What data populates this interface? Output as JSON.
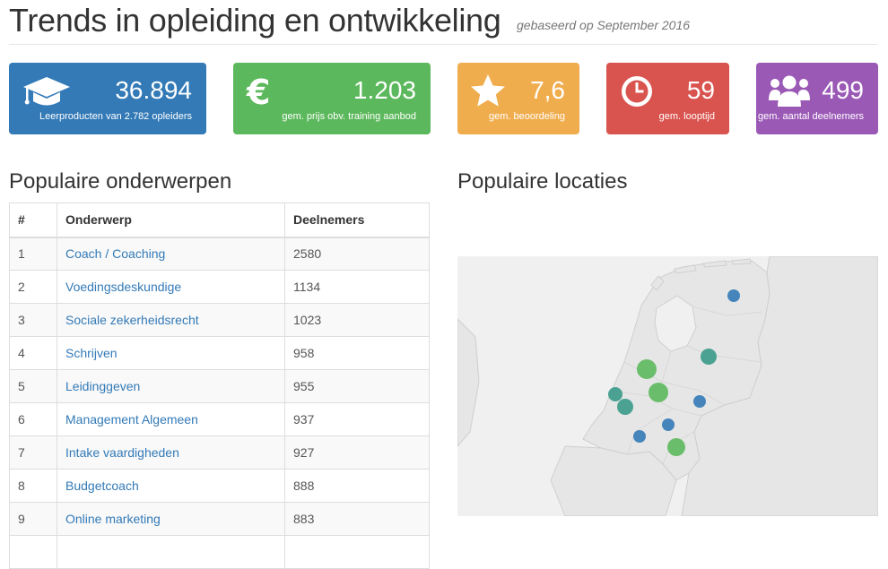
{
  "header": {
    "title": "Trends in opleiding en ontwikkeling",
    "subtitle": "gebaseerd op September 2016"
  },
  "stats": [
    {
      "value": "36.894",
      "label": "Leerproducten van 2.782 opleiders",
      "icon": "graduation-cap-icon",
      "color": "#337ab7"
    },
    {
      "value": "1.203",
      "label": "gem. prijs obv. training aanbod",
      "icon": "euro-icon",
      "color": "#5cb85c"
    },
    {
      "value": "7,6",
      "label": "gem. beoordeling",
      "icon": "star-icon",
      "color": "#f0ad4e"
    },
    {
      "value": "59",
      "label": "gem. looptijd",
      "icon": "clock-icon",
      "color": "#d9534f"
    },
    {
      "value": "499",
      "label": "gem. aantal deelnemers",
      "icon": "users-icon",
      "color": "#9b59b6"
    }
  ],
  "topics": {
    "heading": "Populaire onderwerpen",
    "columns": [
      "#",
      "Onderwerp",
      "Deelnemers"
    ],
    "rows": [
      {
        "rank": "1",
        "topic": "Coach / Coaching",
        "participants": "2580"
      },
      {
        "rank": "2",
        "topic": "Voedingsdeskundige",
        "participants": "1134"
      },
      {
        "rank": "3",
        "topic": "Sociale zekerheidsrecht",
        "participants": "1023"
      },
      {
        "rank": "4",
        "topic": "Schrijven",
        "participants": "958"
      },
      {
        "rank": "5",
        "topic": "Leidinggeven",
        "participants": "955"
      },
      {
        "rank": "6",
        "topic": "Management Algemeen",
        "participants": "937"
      },
      {
        "rank": "7",
        "topic": "Intake vaardigheden",
        "participants": "927"
      },
      {
        "rank": "8",
        "topic": "Budgetcoach",
        "participants": "888"
      },
      {
        "rank": "9",
        "topic": "Online marketing",
        "participants": "883"
      }
    ]
  },
  "locations": {
    "heading": "Populaire locaties",
    "colors": {
      "large": "#5cb85c",
      "medium": "#3a9a8a",
      "small": "#337ab7",
      "land": "#e6e6e6",
      "sea": "#f0f0f0"
    }
  }
}
